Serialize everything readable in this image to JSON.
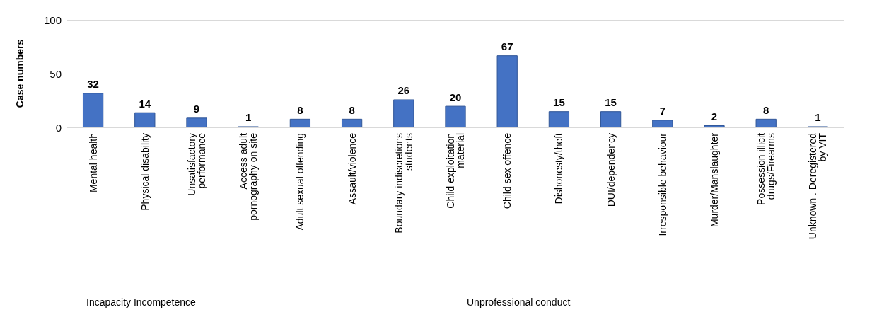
{
  "chart_data": {
    "type": "bar",
    "ylabel": "Case numbers",
    "categories": [
      "Mental health",
      "Physical disability",
      "Unsatisfactory performance",
      "Access adult pornography on site",
      "Adult sexual offending",
      "Assault/violence",
      "Boundary indiscretions students",
      "Child exploitation material",
      "Child sex offence",
      "Dishonesty/theft",
      "DUI/dependency",
      "Irresponsible behaviour",
      "Murder/Manslaughter",
      "Possession illicit drugs/Firearms",
      "Unknown . Deregistered by VIT"
    ],
    "values": [
      32,
      14,
      9,
      1,
      8,
      8,
      26,
      20,
      67,
      15,
      15,
      7,
      2,
      8,
      1
    ],
    "color": "#4472c4",
    "ylim": [
      0,
      100
    ],
    "yticks": [
      0,
      50,
      100
    ],
    "grid": "y",
    "data_labels": true,
    "annotations": [
      "Incapacity Incompetence",
      "Unprofessional conduct"
    ]
  }
}
